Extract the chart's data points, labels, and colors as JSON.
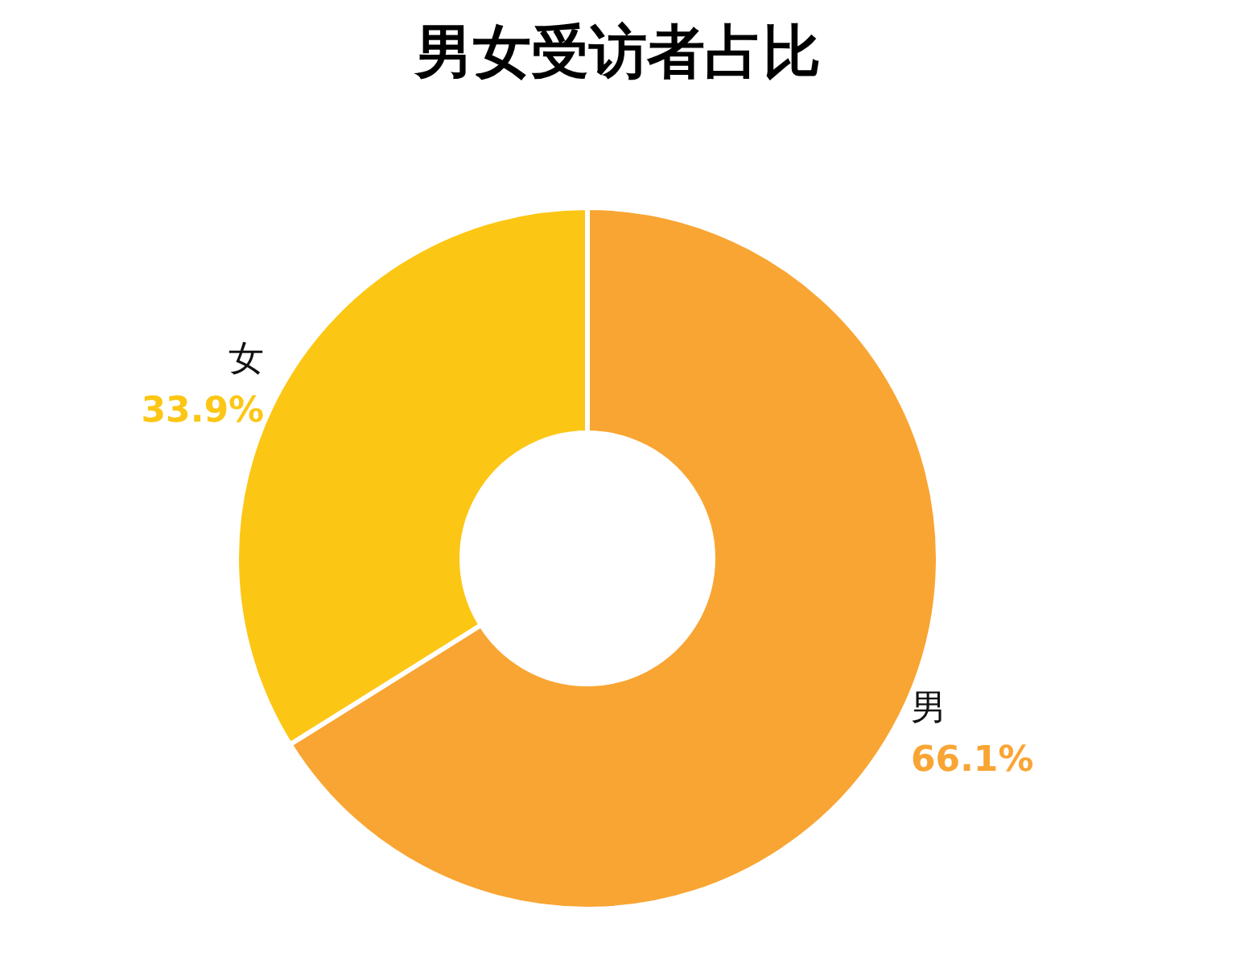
{
  "chart_data": {
    "type": "donut",
    "title": "男女受访者占比",
    "categories": [
      "男",
      "女"
    ],
    "values": [
      66.1,
      33.9
    ],
    "colors": [
      "#f9a533",
      "#fcc614"
    ],
    "value_labels": [
      "66.1%",
      "33.9%"
    ],
    "legend": false
  }
}
